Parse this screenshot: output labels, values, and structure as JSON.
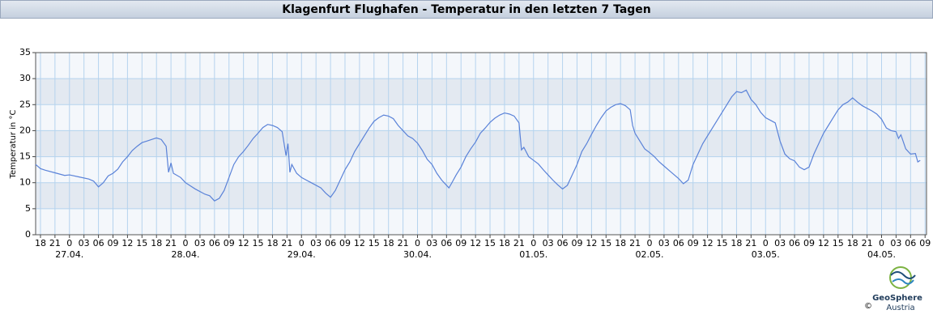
{
  "chart_data": {
    "type": "line",
    "title": "Klagenfurt Flughafen - Temperatur in den letzten 7 Tagen",
    "y_label": "Temperatur in °C",
    "x": [
      -7,
      -6,
      -5,
      -3,
      -1,
      0,
      2,
      4,
      5,
      6,
      7,
      8,
      9,
      10,
      11,
      12,
      13,
      14,
      15,
      16,
      17,
      18,
      19,
      20,
      20.5,
      21,
      21.5,
      23,
      24,
      26,
      28,
      29,
      30,
      31,
      32,
      33,
      34,
      35,
      36,
      37,
      38,
      39,
      40,
      41,
      42,
      43,
      44,
      44.8,
      45.2,
      45.6,
      46,
      47,
      48,
      50,
      52,
      53,
      54,
      55,
      56,
      57,
      58,
      59,
      60,
      61,
      62,
      63,
      64,
      65,
      66,
      67,
      68,
      69,
      70,
      71,
      72,
      73,
      74,
      75,
      76,
      77,
      78,
      78.5,
      79,
      80,
      81,
      82,
      83,
      84,
      85,
      86,
      87,
      88,
      89,
      90,
      91,
      92,
      93,
      93.5,
      94,
      95,
      96,
      97,
      98,
      99,
      100,
      101,
      102,
      103,
      104,
      105,
      106,
      107,
      108,
      109,
      110,
      111,
      112,
      113,
      114,
      115,
      116,
      116.5,
      117,
      118,
      119,
      120,
      121,
      122,
      123,
      124,
      125,
      126,
      127,
      128,
      129,
      130,
      131,
      132,
      133,
      134,
      135,
      136,
      137,
      138,
      139,
      140,
      141,
      142,
      143,
      144,
      145,
      146,
      147,
      148,
      149,
      150,
      151,
      152,
      153,
      154,
      155,
      156,
      157,
      158,
      159,
      160,
      161,
      162,
      163,
      164,
      165,
      166,
      167,
      168,
      169,
      170,
      171,
      171.5,
      172,
      173,
      174,
      175,
      175.5,
      176
    ],
    "series": [
      {
        "name": "Temperatur",
        "color": "#5a82d8",
        "values": [
          13.5,
          12.7,
          12.4,
          11.9,
          11.4,
          11.5,
          11.1,
          10.7,
          10.3,
          9.2,
          10,
          11.3,
          11.8,
          12.6,
          14,
          15,
          16.2,
          17,
          17.7,
          18,
          18.3,
          18.6,
          18.3,
          17,
          12,
          13.8,
          11.8,
          11,
          10,
          8.8,
          7.8,
          7.5,
          6.5,
          7,
          8.5,
          11,
          13.5,
          15,
          16,
          17.2,
          18.5,
          19.5,
          20.6,
          21.2,
          21,
          20.6,
          19.8,
          15.2,
          17.5,
          12,
          13.5,
          11.8,
          11,
          10,
          9,
          8,
          7.2,
          8.5,
          10.5,
          12.5,
          14,
          16,
          17.5,
          19,
          20.5,
          21.8,
          22.5,
          23,
          22.8,
          22.3,
          21,
          20,
          19,
          18.5,
          17.6,
          16.2,
          14.5,
          13.5,
          11.8,
          10.5,
          9.5,
          9,
          9.8,
          11.5,
          13,
          15,
          16.5,
          17.8,
          19.5,
          20.5,
          21.6,
          22.4,
          23,
          23.4,
          23.2,
          22.8,
          21.5,
          16.3,
          16.8,
          15,
          14.3,
          13.6,
          12.5,
          11.5,
          10.5,
          9.6,
          8.8,
          9.5,
          11.5,
          13.5,
          16,
          17.5,
          19.3,
          21,
          22.5,
          23.8,
          24.5,
          25,
          25.2,
          24.8,
          24,
          21,
          19.5,
          18,
          16.5,
          15.8,
          15,
          14,
          13.2,
          12.4,
          11.6,
          10.8,
          9.8,
          10.5,
          13.5,
          15.5,
          17.5,
          19,
          20.5,
          22,
          23.5,
          25,
          26.5,
          27.5,
          27.3,
          27.8,
          26,
          25,
          23.5,
          22.5,
          22,
          21.5,
          18,
          15.5,
          14.6,
          14.2,
          13,
          12.5,
          13,
          15.5,
          17.5,
          19.5,
          21,
          22.5,
          24,
          25,
          25.5,
          26.3,
          25.5,
          24.8,
          24.3,
          23.8,
          23.2,
          22.2,
          20.5,
          20,
          19.8,
          18.5,
          19.2,
          16.5,
          15.5,
          15.6,
          14,
          14.3
        ]
      }
    ],
    "xlim": [
      -7,
      177.3
    ],
    "xticks": [
      {
        "value": -6,
        "label": "18"
      },
      {
        "value": -3,
        "label": "21"
      },
      0,
      {
        "value": 3,
        "label": "03"
      },
      {
        "value": 6,
        "label": "06"
      },
      {
        "value": 9,
        "label": "09"
      },
      12,
      15,
      18,
      21,
      {
        "value": 24,
        "label": "0"
      },
      {
        "value": 27,
        "label": "03"
      },
      {
        "value": 30,
        "label": "06"
      },
      {
        "value": 33,
        "label": "09"
      },
      {
        "value": 36,
        "label": "12"
      },
      {
        "value": 39,
        "label": "15"
      },
      {
        "value": 42,
        "label": "18"
      },
      {
        "value": 45,
        "label": "21"
      },
      {
        "value": 48,
        "label": "0"
      },
      {
        "value": 51,
        "label": "03"
      },
      {
        "value": 54,
        "label": "06"
      },
      {
        "value": 57,
        "label": "09"
      },
      {
        "value": 60,
        "label": "12"
      },
      {
        "value": 63,
        "label": "15"
      },
      {
        "value": 66,
        "label": "18"
      },
      {
        "value": 69,
        "label": "21"
      },
      {
        "value": 72,
        "label": "0"
      },
      {
        "value": 75,
        "label": "03"
      },
      {
        "value": 78,
        "label": "06"
      },
      {
        "value": 81,
        "label": "09"
      },
      {
        "value": 84,
        "label": "12"
      },
      {
        "value": 87,
        "label": "15"
      },
      {
        "value": 90,
        "label": "18"
      },
      {
        "value": 93,
        "label": "21"
      },
      {
        "value": 96,
        "label": "0"
      },
      {
        "value": 99,
        "label": "03"
      },
      {
        "value": 102,
        "label": "06"
      },
      {
        "value": 105,
        "label": "09"
      },
      {
        "value": 108,
        "label": "12"
      },
      {
        "value": 111,
        "label": "15"
      },
      {
        "value": 114,
        "label": "18"
      },
      {
        "value": 117,
        "label": "21"
      },
      {
        "value": 120,
        "label": "0"
      },
      {
        "value": 123,
        "label": "03"
      },
      {
        "value": 126,
        "label": "06"
      },
      {
        "value": 129,
        "label": "09"
      },
      {
        "value": 132,
        "label": "12"
      },
      {
        "value": 135,
        "label": "15"
      },
      {
        "value": 138,
        "label": "18"
      },
      {
        "value": 141,
        "label": "21"
      },
      {
        "value": 144,
        "label": "0"
      },
      {
        "value": 147,
        "label": "03"
      },
      {
        "value": 150,
        "label": "06"
      },
      {
        "value": 153,
        "label": "09"
      },
      {
        "value": 156,
        "label": "12"
      },
      {
        "value": 159,
        "label": "15"
      },
      {
        "value": 162,
        "label": "18"
      },
      {
        "value": 165,
        "label": "21"
      },
      {
        "value": 168,
        "label": "0"
      },
      {
        "value": 171,
        "label": "03"
      },
      {
        "value": 174,
        "label": "06"
      },
      {
        "value": 177,
        "label": "09"
      }
    ],
    "date_labels": [
      {
        "value": 0,
        "label": "27.04."
      },
      {
        "value": 24,
        "label": "28.04."
      },
      {
        "value": 48,
        "label": "29.04."
      },
      {
        "value": 72,
        "label": "30.04."
      },
      {
        "value": 96,
        "label": "01.05."
      },
      {
        "value": 120,
        "label": "02.05."
      },
      {
        "value": 144,
        "label": "03.05."
      },
      {
        "value": 168,
        "label": "04.05."
      }
    ],
    "ylim": [
      0,
      35
    ],
    "yticks": [
      0,
      5,
      10,
      15,
      20,
      25,
      30,
      35
    ],
    "grid": true
  },
  "footer": {
    "brand": "GeoSphere",
    "sub": "Austria",
    "copyright": "©"
  }
}
